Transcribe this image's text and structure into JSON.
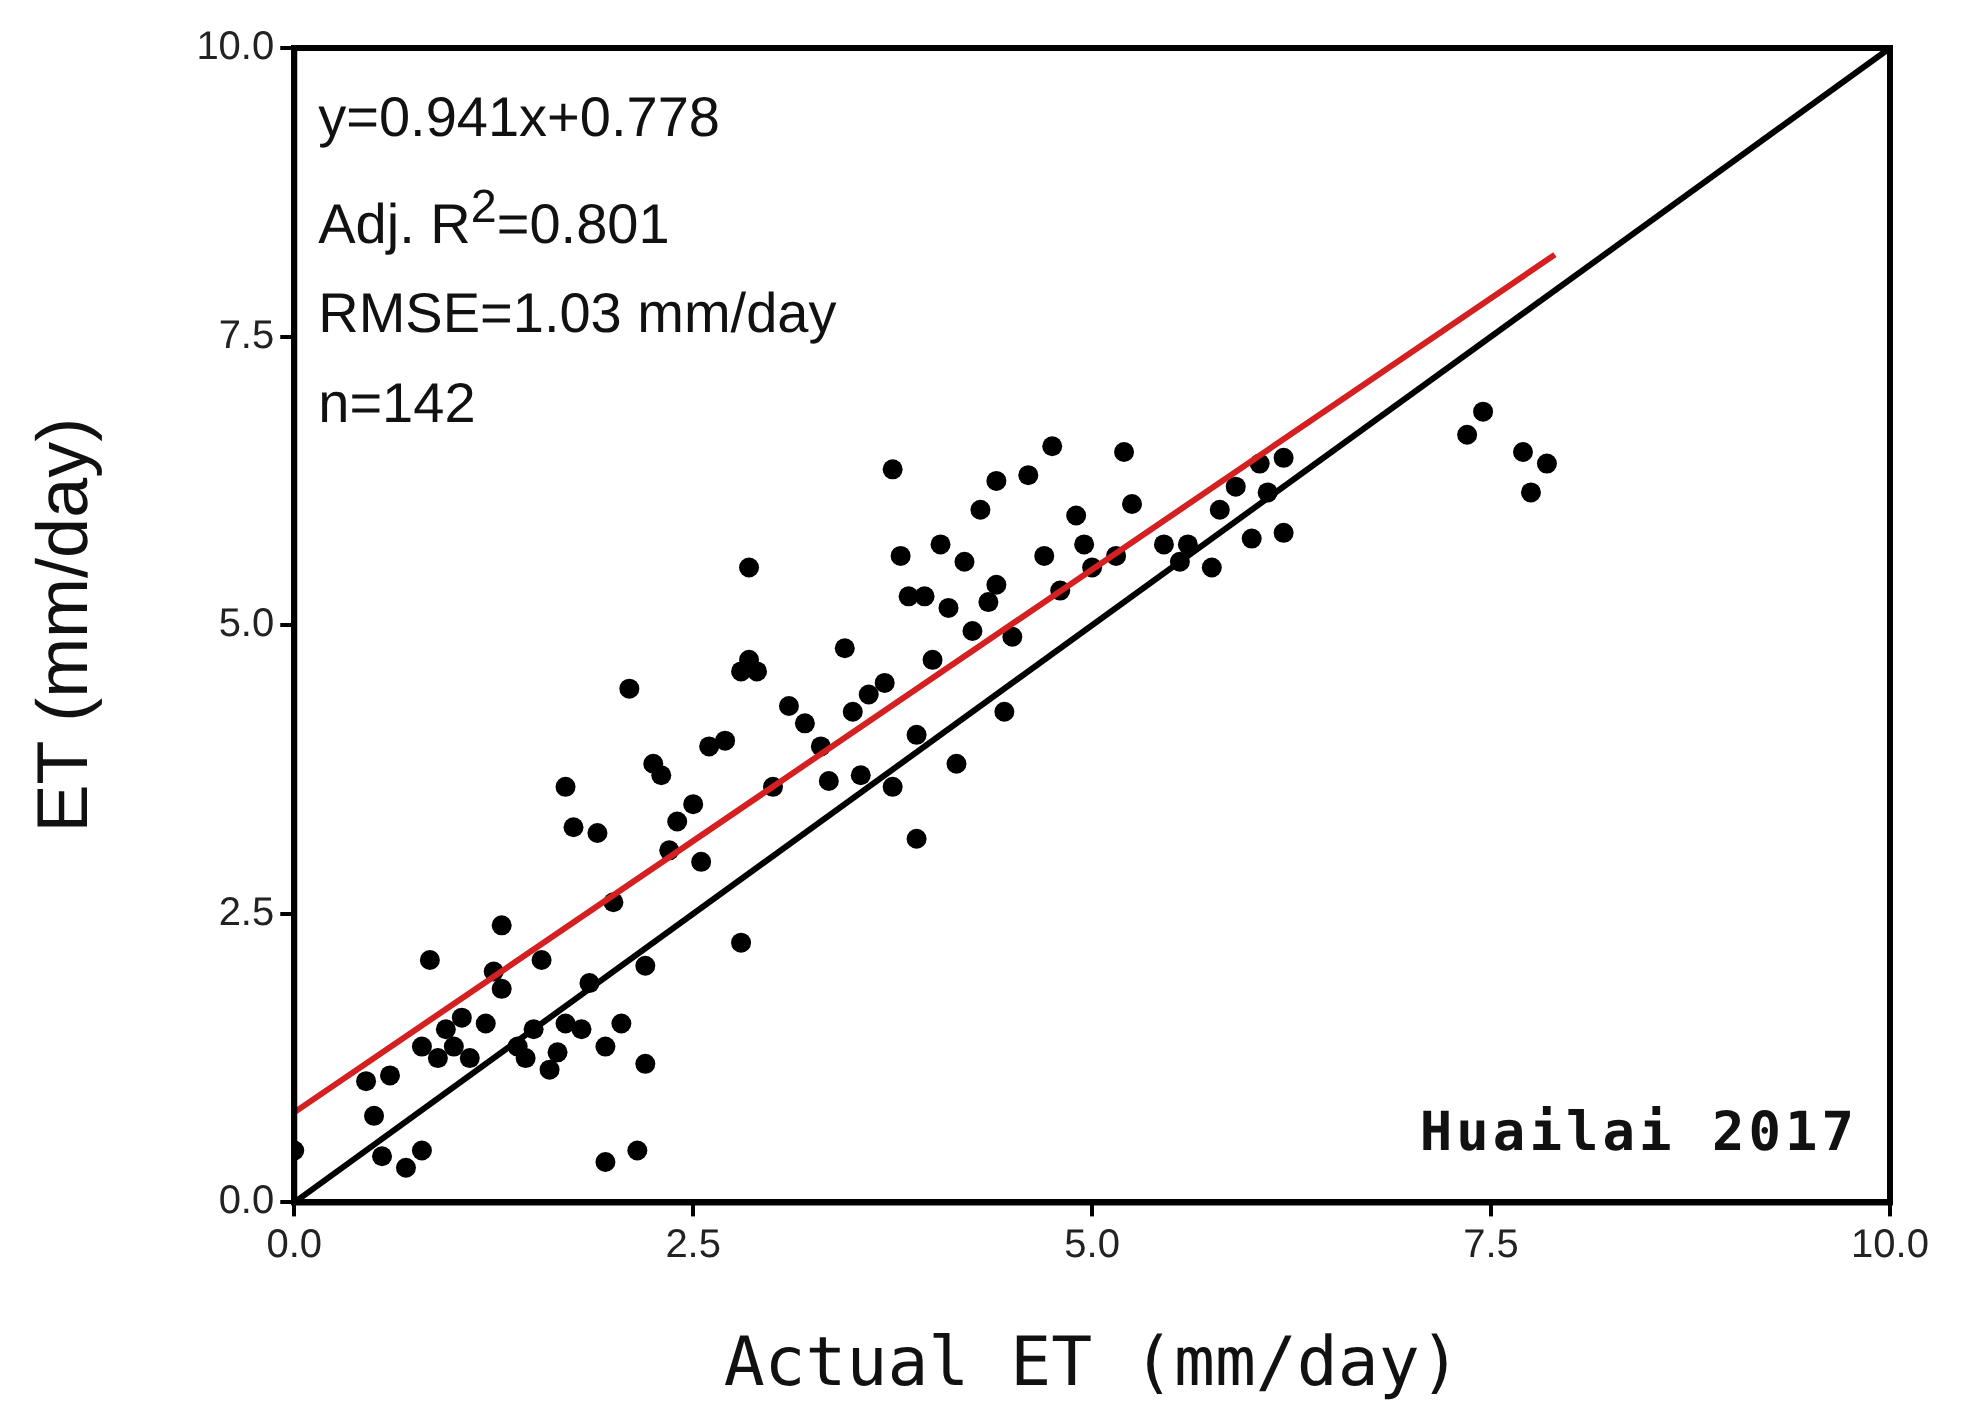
{
  "chart_data": {
    "type": "scatter",
    "xlabel": "Actual ET (mm/day)",
    "ylabel": "ET (mm/day)",
    "xlim": [
      0,
      10
    ],
    "ylim": [
      0,
      10
    ],
    "xticks": [
      {
        "value": 0,
        "label": "0.0"
      },
      {
        "value": 2.5,
        "label": "2.5"
      },
      {
        "value": 5,
        "label": "5.0"
      },
      {
        "value": 7.5,
        "label": "7.5"
      },
      {
        "value": 10,
        "label": "10.0"
      }
    ],
    "yticks": [
      {
        "value": 0,
        "label": "0.0"
      },
      {
        "value": 2.5,
        "label": "2.5"
      },
      {
        "value": 5,
        "label": "5.0"
      },
      {
        "value": 7.5,
        "label": "7.5"
      },
      {
        "value": 10,
        "label": "10.0"
      }
    ],
    "grid": false,
    "legend": false,
    "annotations": [
      "y=0.941x+0.778",
      "Adj. R$^{2}$=0.801",
      "RMSE=1.03 mm/day",
      "n=142",
      "Huailai 2017"
    ],
    "series": [
      {
        "type": "scatter",
        "color": "#000000",
        "marker": "circle",
        "x": [
          0.0,
          0.45,
          0.5,
          0.55,
          0.6,
          0.7,
          0.8,
          0.8,
          0.85,
          0.9,
          0.95,
          1.0,
          1.05,
          1.1,
          1.2,
          1.25,
          1.3,
          1.3,
          1.4,
          1.45,
          1.5,
          1.55,
          1.6,
          1.65,
          1.7,
          1.7,
          1.75,
          1.8,
          1.85,
          1.9,
          1.95,
          1.95,
          2.0,
          2.05,
          2.1,
          2.15,
          2.2,
          2.2,
          2.25,
          2.3,
          2.35,
          2.4,
          2.5,
          2.55,
          2.6,
          2.7,
          2.8,
          2.8,
          2.85,
          2.85,
          2.9,
          3.0,
          3.1,
          3.2,
          3.3,
          3.35,
          3.45,
          3.5,
          3.55,
          3.6,
          3.7,
          3.75,
          3.75,
          3.8,
          3.85,
          3.9,
          3.9,
          3.95,
          4.0,
          4.05,
          4.1,
          4.15,
          4.2,
          4.25,
          4.3,
          4.35,
          4.4,
          4.4,
          4.45,
          4.5,
          4.6,
          4.7,
          4.75,
          4.8,
          4.9,
          4.95,
          5.0,
          5.15,
          5.2,
          5.25,
          5.45,
          5.55,
          5.6,
          5.75,
          5.8,
          5.9,
          6.0,
          6.05,
          6.1,
          6.2,
          6.2,
          7.35,
          7.45,
          7.7,
          7.75,
          7.85
        ],
        "values": [
          0.45,
          1.05,
          0.75,
          0.4,
          1.1,
          0.3,
          0.45,
          1.35,
          2.1,
          1.25,
          1.5,
          1.35,
          1.6,
          1.25,
          1.55,
          2.0,
          2.4,
          1.85,
          1.35,
          1.25,
          1.5,
          2.1,
          1.15,
          1.3,
          1.55,
          3.6,
          3.25,
          1.5,
          1.9,
          3.2,
          1.35,
          0.35,
          2.6,
          1.55,
          4.45,
          0.45,
          2.05,
          1.2,
          3.8,
          3.7,
          3.05,
          3.3,
          3.45,
          2.95,
          3.95,
          4.0,
          4.6,
          2.25,
          5.5,
          4.7,
          4.6,
          3.6,
          4.3,
          4.15,
          3.95,
          3.65,
          4.8,
          4.25,
          3.7,
          4.4,
          4.5,
          6.35,
          3.6,
          5.6,
          5.25,
          4.05,
          3.15,
          5.25,
          4.7,
          5.7,
          5.15,
          3.8,
          5.55,
          4.95,
          6.0,
          5.2,
          5.35,
          6.25,
          4.25,
          4.9,
          6.3,
          5.6,
          6.55,
          5.3,
          5.95,
          5.7,
          5.5,
          5.6,
          6.5,
          6.05,
          5.7,
          5.55,
          5.7,
          5.5,
          6.0,
          6.2,
          5.75,
          6.4,
          6.15,
          5.8,
          6.45,
          6.65,
          6.85,
          6.5,
          6.15,
          6.4
        ]
      },
      {
        "type": "line",
        "color": "#d42020",
        "marker": "none",
        "line_style": "solid",
        "x": [
          0,
          7.9
        ],
        "values": [
          0.78,
          8.21
        ]
      },
      {
        "type": "line",
        "color": "#000000",
        "marker": "none",
        "line_style": "solid",
        "x": [
          0,
          10
        ],
        "values": [
          0,
          10
        ]
      }
    ]
  }
}
